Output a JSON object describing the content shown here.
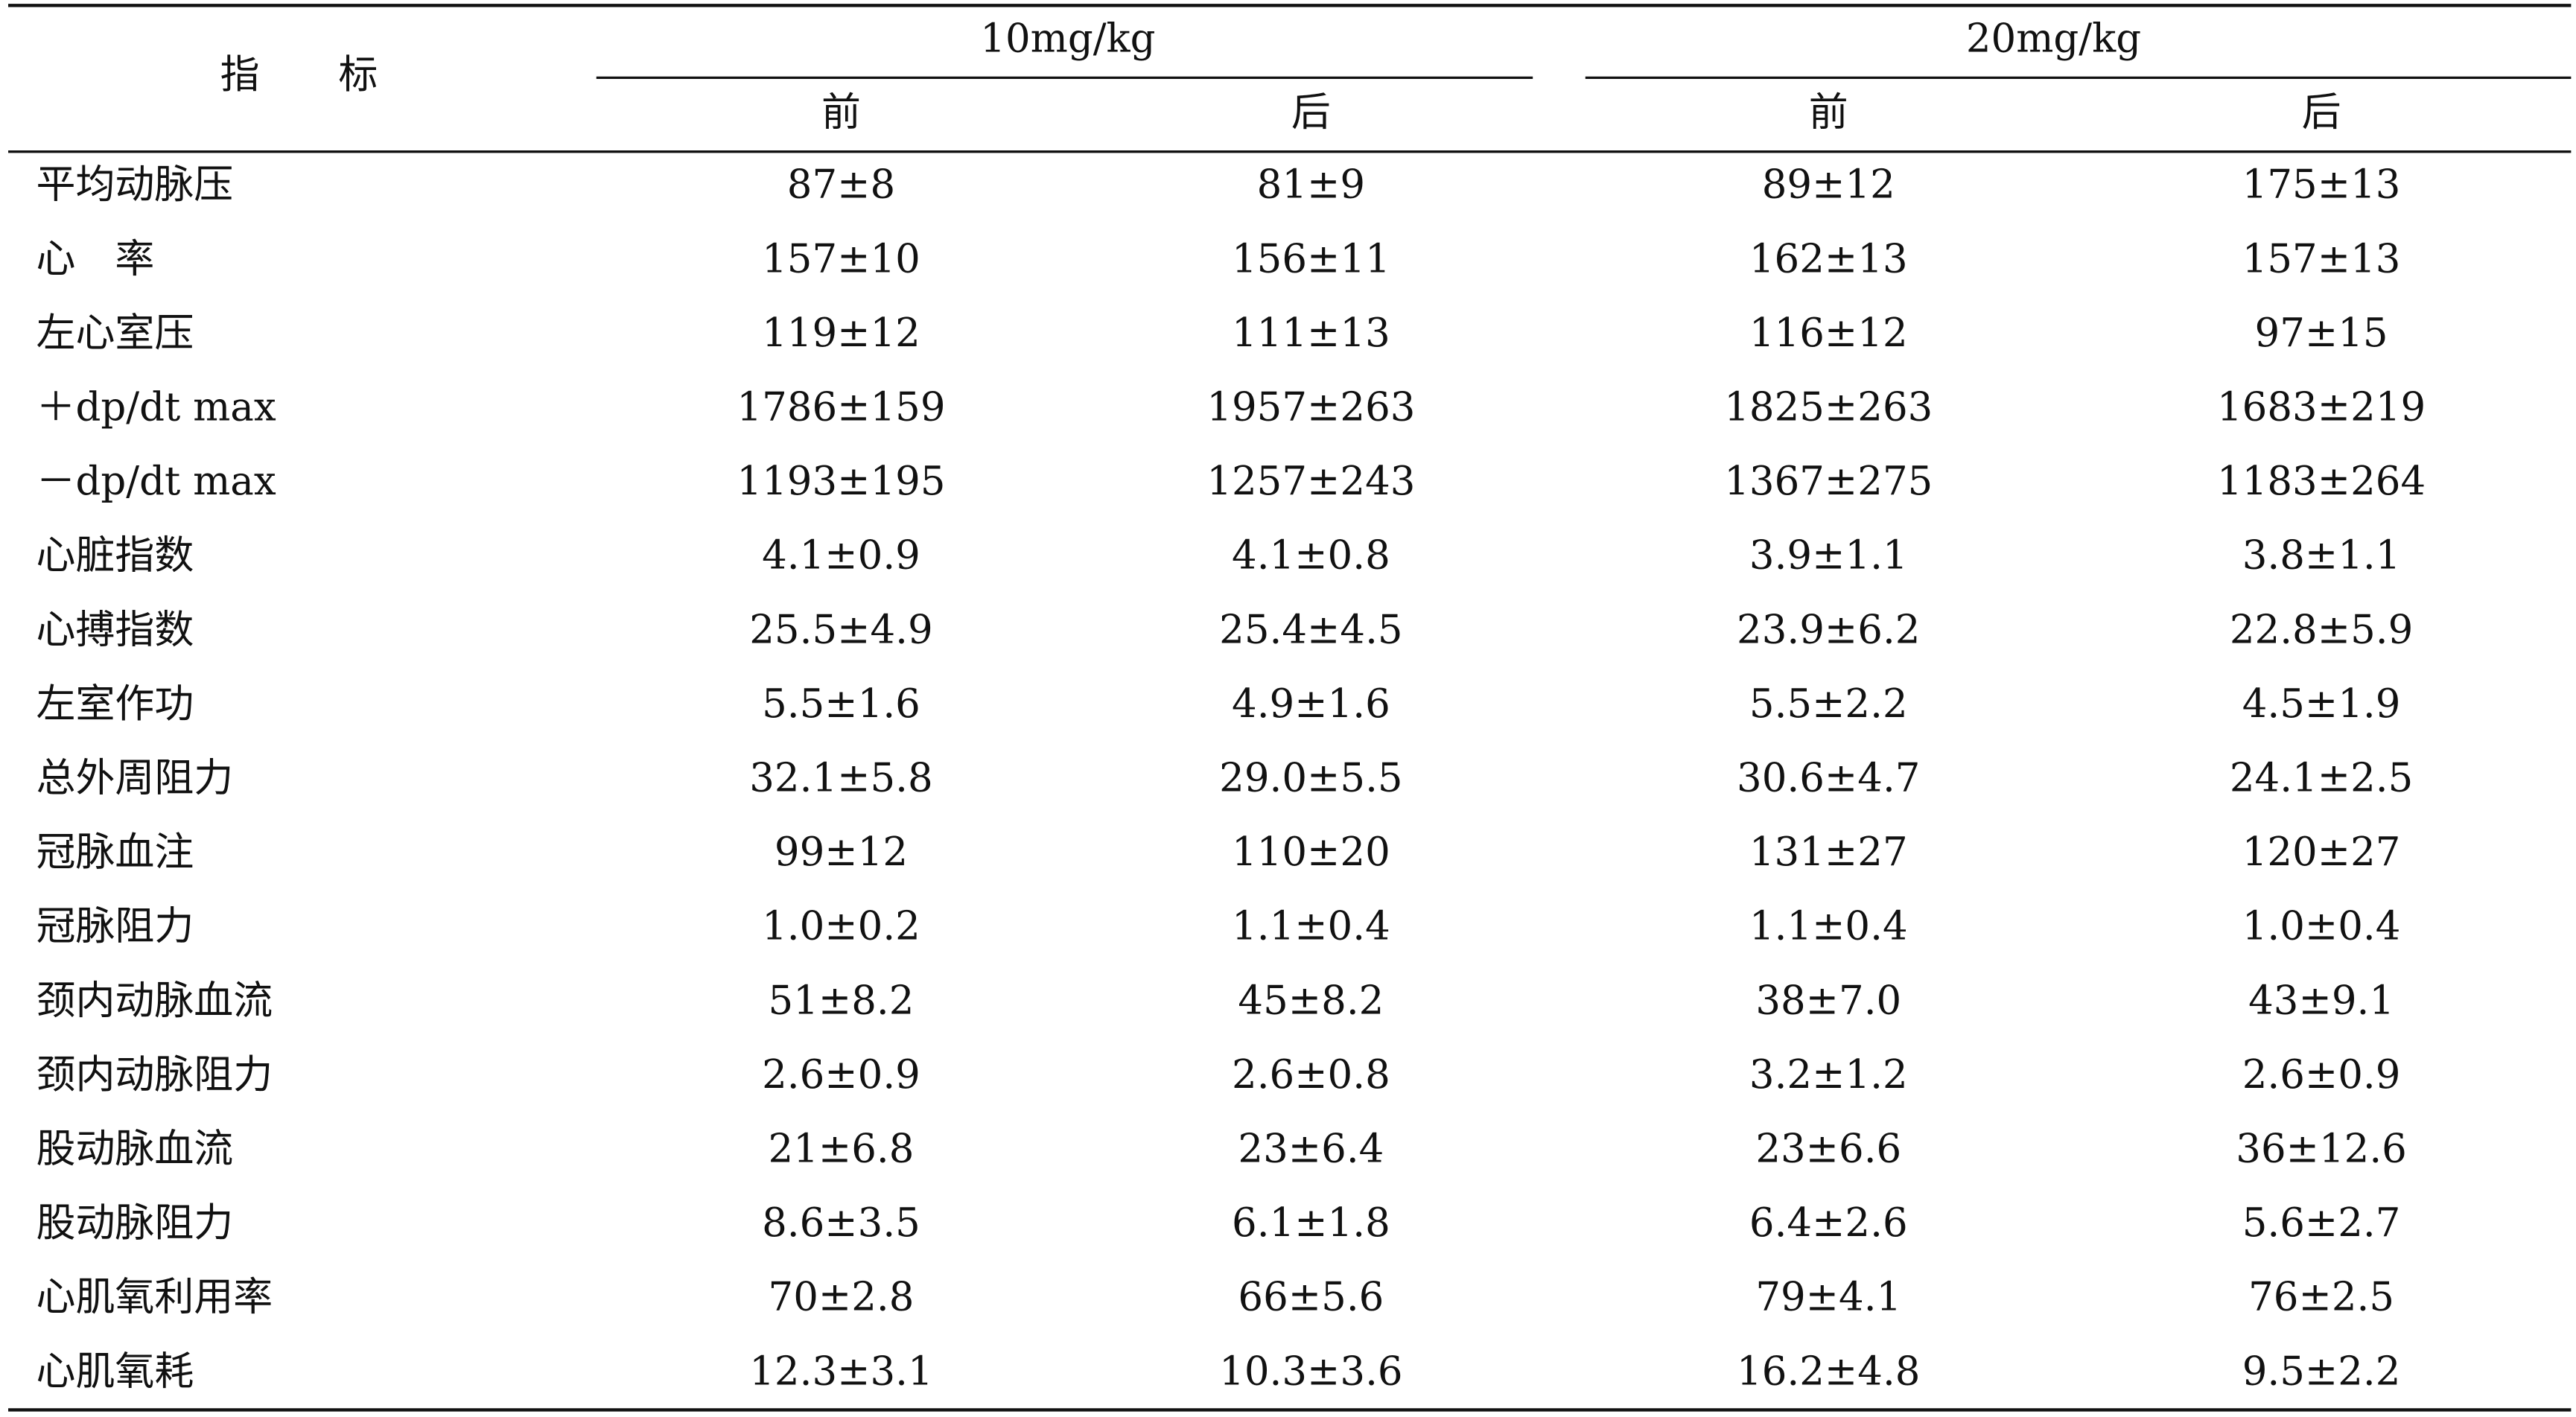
{
  "table": {
    "header": {
      "indicator": "指　　标",
      "groups": [
        {
          "label": "10mg/kg",
          "columns": [
            "前",
            "后"
          ]
        },
        {
          "label": "20mg/kg",
          "columns": [
            "前",
            "后"
          ]
        }
      ]
    },
    "rows": [
      [
        "平均动脉压",
        "87±8",
        "81±9",
        "89±12",
        "175±13"
      ],
      [
        "心　率",
        "157±10",
        "156±11",
        "162±13",
        "157±13"
      ],
      [
        "左心室压",
        "119±12",
        "111±13",
        "116±12",
        "97±15"
      ],
      [
        "＋dp/dt max",
        "1786±159",
        "1957±263",
        "1825±263",
        "1683±219"
      ],
      [
        "－dp/dt max",
        "1193±195",
        "1257±243",
        "1367±275",
        "1183±264"
      ],
      [
        "心脏指数",
        "4.1±0.9",
        "4.1±0.8",
        "3.9±1.1",
        "3.8±1.1"
      ],
      [
        "心搏指数",
        "25.5±4.9",
        "25.4±4.5",
        "23.9±6.2",
        "22.8±5.9"
      ],
      [
        "左室作功",
        "5.5±1.6",
        "4.9±1.6",
        "5.5±2.2",
        "4.5±1.9"
      ],
      [
        "总外周阻力",
        "32.1±5.8",
        "29.0±5.5",
        "30.6±4.7",
        "24.1±2.5"
      ],
      [
        "冠脉血注",
        "99±12",
        "110±20",
        "131±27",
        "120±27"
      ],
      [
        "冠脉阻力",
        "1.0±0.2",
        "1.1±0.4",
        "1.1±0.4",
        "1.0±0.4"
      ],
      [
        "颈内动脉血流",
        "51±8.2",
        "45±8.2",
        "38±7.0",
        "43±9.1"
      ],
      [
        "颈内动脉阻力",
        "2.6±0.9",
        "2.6±0.8",
        "3.2±1.2",
        "2.6±0.9"
      ],
      [
        "股动脉血流",
        "21±6.8",
        "23±6.4",
        "23±6.6",
        "36±12.6"
      ],
      [
        "股动脉阻力",
        "8.6±3.5",
        "6.1±1.8",
        "6.4±2.6",
        "5.6±2.7"
      ],
      [
        "心肌氧利用率",
        "70±2.8",
        "66±5.6",
        "79±4.1",
        "76±2.5"
      ],
      [
        "心肌氧耗",
        "12.3±3.1",
        "10.3±3.6",
        "16.2±4.8",
        "9.5±2.2"
      ]
    ]
  }
}
